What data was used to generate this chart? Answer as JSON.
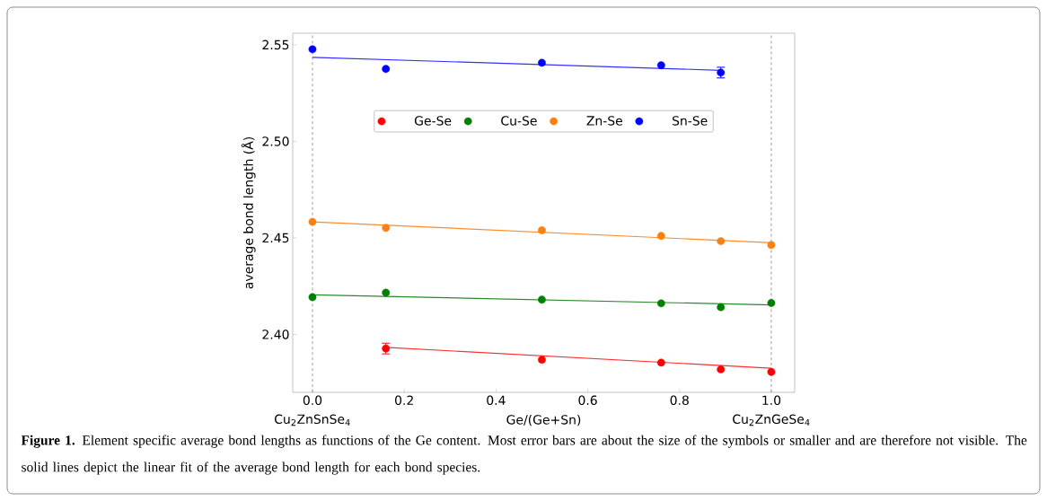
{
  "chart_data": {
    "type": "scatter",
    "xlabel": "Ge/(Ge+Sn)",
    "ylabel": "average bond length (Å)",
    "xlim": [
      -0.043,
      1.051
    ],
    "ylim": [
      2.37,
      2.556
    ],
    "xticks": [
      {
        "value": 0,
        "label": "0.0"
      },
      0.2,
      0.4,
      0.6,
      0.8,
      {
        "value": 1,
        "label": "1.0"
      }
    ],
    "yticks": [
      {
        "value": 2.4,
        "label": "2.40"
      },
      {
        "value": 2.45,
        "label": "2.45"
      },
      {
        "value": 2.5,
        "label": "2.50"
      },
      2.55
    ],
    "legend": "top",
    "grid": false,
    "series": [
      {
        "name": "Ge-Se",
        "marker": "circle",
        "color": "#ff0000",
        "x": [
          0.16,
          0.5,
          0.76,
          0.89,
          1.0
        ],
        "values": [
          2.3927,
          2.3869,
          2.3854,
          2.3819,
          2.3806
        ],
        "errors": [
          0.003,
          null,
          null,
          null,
          null
        ]
      },
      {
        "name": "Cu-Se",
        "marker": "circle",
        "color": "#008000",
        "x": [
          0,
          0.16,
          0.5,
          0.76,
          0.89,
          1.0
        ],
        "values": [
          2.4193,
          2.4216,
          2.418,
          2.4161,
          2.4141,
          2.4163
        ]
      },
      {
        "name": "Zn-Se",
        "marker": "circle",
        "color": "#ff7f0e",
        "x": [
          0,
          0.16,
          0.5,
          0.76,
          0.89,
          1.0
        ],
        "values": [
          2.4583,
          2.4552,
          2.4539,
          2.451,
          2.4483,
          2.4463
        ]
      },
      {
        "name": "Sn-Se",
        "marker": "circle",
        "color": "#0000ff",
        "x": [
          0,
          0.16,
          0.5,
          0.76,
          0.89
        ],
        "values": [
          2.5477,
          2.5375,
          2.5407,
          2.5394,
          2.5356
        ],
        "errors": [
          null,
          null,
          null,
          null,
          0.003
        ]
      },
      {
        "type": "line",
        "marker": "none",
        "color": "#ff3030",
        "x": [
          0.16,
          1.0
        ],
        "values": [
          2.3933,
          2.3825
        ]
      },
      {
        "type": "line",
        "marker": "none",
        "color": "#2a8a2a",
        "x": [
          0,
          1.0
        ],
        "values": [
          2.4205,
          2.4153
        ]
      },
      {
        "type": "line",
        "marker": "none",
        "color": "#ff8c2a",
        "x": [
          0,
          1.0
        ],
        "values": [
          2.4583,
          2.4475
        ]
      },
      {
        "type": "line",
        "marker": "none",
        "color": "#3030ff",
        "x": [
          0,
          0.89
        ],
        "values": [
          2.5435,
          2.5368
        ]
      }
    ],
    "ref_lines": [
      {
        "axis": "x",
        "value": 0,
        "label": "Cu$_{2}$ZnSnSe$_{4}$",
        "color": "#808080",
        "line_style": "dashed"
      },
      {
        "axis": "x",
        "value": 1,
        "label": "Cu$_{2}$ZnGeSe$_{4}$",
        "color": "#808080",
        "line_style": "dashed"
      }
    ],
    "annotations": [
      "**Figure 1.** Element specific average bond lengths as functions of the Ge content. Most error bars are about the size of the symbols or smaller and are therefore not visible. The solid lines depict the linear fit of the average bond length for each bond species."
    ]
  }
}
